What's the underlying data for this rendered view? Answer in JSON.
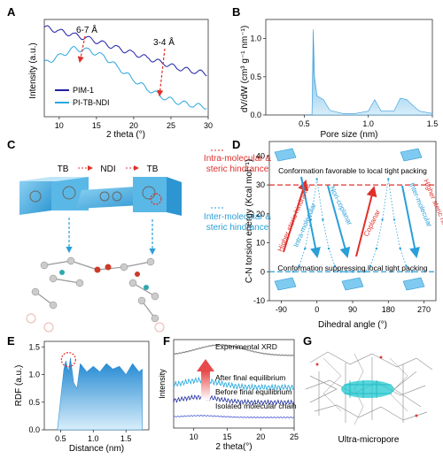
{
  "panels": {
    "A": {
      "letter": "A",
      "ylabel": "Intensity (a.u.)",
      "xlabel": "2 theta (°)",
      "ann1": "6-7 Å",
      "ann2": "3-4 Å",
      "legend": [
        "PIM-1",
        "PI-TB-NDI"
      ],
      "colors": {
        "pim": "#1f1fa8",
        "pitb": "#2aa6de"
      }
    },
    "B": {
      "letter": "B",
      "ylabel": "dV/dW (cm³ g⁻¹ nm⁻¹)",
      "xlabel": "Pore size (nm)"
    },
    "C": {
      "letter": "C",
      "tb_left": "TB",
      "ndi": "NDI",
      "tb_right": "TB",
      "intra_line1": "Intra-molecular &",
      "intra_line2": "steric hindrance",
      "inter_line1": "Inter-molecular &",
      "inter_line2": "steric hindrance"
    },
    "D": {
      "letter": "D",
      "ylabel": "C-N torsion energy (Kcal mol⁻¹)",
      "xlabel": "Dihedral angle (°)",
      "top_text": "Conformation favorable to local tight packing",
      "bottom_text": "Conformation suppressing local tight packing",
      "left_red": "Higher steric hindrance",
      "left_blue": "Intra-molecular",
      "mid_blue": "Non-coplanar",
      "mid_red": "Coplanar",
      "right_red": "Higher steric hindrance",
      "right_blue": "Inter-molecular"
    },
    "E": {
      "letter": "E",
      "ylabel": "RDF (a.u.)",
      "xlabel": "Distance (nm)"
    },
    "F": {
      "letter": "F",
      "ylabel": "Intensity",
      "xlabel": "2 theta(°)",
      "labels": [
        "Experimental XRD",
        "After final equilibrium",
        "Before final equilibrium",
        "Isolated molecular chain"
      ]
    },
    "G": {
      "letter": "G",
      "caption": "Ultra-micropore"
    }
  },
  "chart_data": [
    {
      "panel": "A",
      "type": "line",
      "xlim": [
        8,
        30
      ],
      "ylim": [
        0,
        1
      ],
      "xticks": [
        "10",
        "15",
        "20",
        "25",
        "30"
      ],
      "series": [
        {
          "name": "PIM-1",
          "x": [
            8,
            10,
            12,
            14,
            16,
            18,
            20,
            22,
            24,
            26,
            28,
            30
          ],
          "y": [
            0.92,
            0.88,
            0.84,
            0.8,
            0.75,
            0.7,
            0.65,
            0.6,
            0.55,
            0.5,
            0.47,
            0.44
          ]
        },
        {
          "name": "PI-TB-NDI",
          "x": [
            8,
            10,
            12,
            14,
            16,
            18,
            20,
            22,
            24,
            26,
            28,
            30
          ],
          "y": [
            0.55,
            0.62,
            0.7,
            0.68,
            0.62,
            0.5,
            0.38,
            0.28,
            0.2,
            0.15,
            0.12,
            0.1
          ]
        }
      ]
    },
    {
      "panel": "B",
      "type": "area",
      "xlim": [
        0.2,
        1.5
      ],
      "ylim": [
        0,
        1.25
      ],
      "xticks": [
        "0.5",
        "1.0",
        "1.5"
      ],
      "yticks": [
        "0.0",
        "0.5",
        "1.0"
      ],
      "x": [
        0.5,
        0.56,
        0.57,
        0.58,
        0.6,
        0.65,
        0.7,
        0.8,
        0.9,
        1.0,
        1.05,
        1.1,
        1.2,
        1.25,
        1.3,
        1.35,
        1.4,
        1.5
      ],
      "y": [
        0,
        0,
        1.12,
        0.5,
        0.25,
        0.2,
        0.06,
        0.02,
        0.02,
        0.05,
        0.2,
        0.05,
        0.05,
        0.22,
        0.2,
        0.12,
        0.05,
        0.02
      ]
    },
    {
      "panel": "D",
      "type": "line",
      "xlim": [
        -120,
        300
      ],
      "ylim": [
        -10,
        45
      ],
      "xticks": [
        "-90",
        "0",
        "90",
        "180",
        "270"
      ],
      "yticks": [
        "-10",
        "0",
        "10",
        "20",
        "30",
        "40"
      ],
      "dashed_levels": [
        30,
        0
      ],
      "x": [
        -60,
        -45,
        -30,
        -15,
        0,
        15,
        30,
        45,
        60,
        75,
        90,
        105,
        120,
        135,
        150,
        165,
        180,
        195,
        210,
        225,
        240
      ],
      "y": [
        0,
        2,
        8,
        18,
        32,
        18,
        8,
        2,
        0,
        0,
        0,
        0,
        0,
        2,
        8,
        18,
        32,
        18,
        8,
        2,
        0
      ]
    },
    {
      "panel": "E",
      "type": "area",
      "xlim": [
        0.25,
        1.85
      ],
      "ylim": [
        0,
        1.6
      ],
      "xticks": [
        "0.5",
        "1.0",
        "1.5"
      ],
      "yticks": [
        "0.0",
        "0.5",
        "1.0",
        "1.5"
      ],
      "x": [
        0.45,
        0.5,
        0.55,
        0.58,
        0.62,
        0.65,
        0.7,
        0.75,
        0.8,
        0.9,
        1.0,
        1.1,
        1.2,
        1.3,
        1.4,
        1.5,
        1.6,
        1.7,
        1.75
      ],
      "y": [
        0,
        0.55,
        1.1,
        1.25,
        1.05,
        1.3,
        0.85,
        0.75,
        1.2,
        1.05,
        1.15,
        1.05,
        1.2,
        1.1,
        1.15,
        1.0,
        1.2,
        1.05,
        1.1
      ]
    },
    {
      "panel": "F",
      "type": "line",
      "xlim": [
        7,
        25
      ],
      "xticks": [
        "10",
        "15",
        "20",
        "25"
      ]
    }
  ]
}
